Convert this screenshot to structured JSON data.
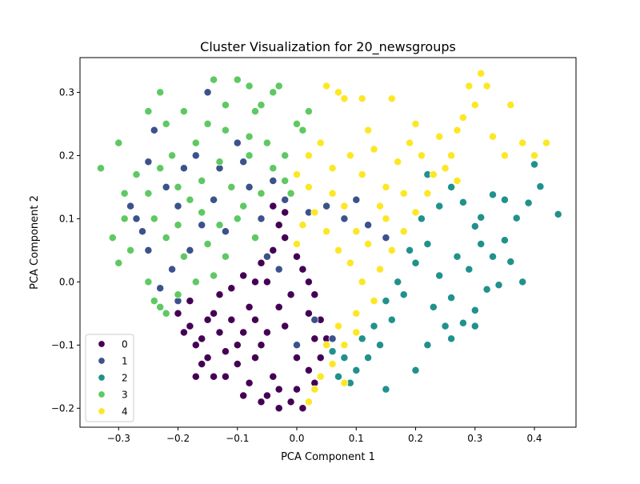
{
  "chart_data": {
    "type": "scatter",
    "title": "Cluster Visualization for 20_newsgroups",
    "xlabel": "PCA Component 1",
    "ylabel": "PCA Component 2",
    "xlim": [
      -0.365,
      0.47
    ],
    "ylim": [
      -0.23,
      0.355
    ],
    "xticks": [
      -0.3,
      -0.2,
      -0.1,
      0.0,
      0.1,
      0.2,
      0.3,
      0.4
    ],
    "yticks": [
      -0.2,
      -0.1,
      0.0,
      0.1,
      0.2,
      0.3
    ],
    "xtick_labels": [
      "−0.3",
      "−0.2",
      "−0.1",
      "0.0",
      "0.1",
      "0.2",
      "0.3",
      "0.4"
    ],
    "ytick_labels": [
      "−0.2",
      "−0.1",
      "0.0",
      "0.1",
      "0.2",
      "0.3"
    ],
    "grid": false,
    "legend_position": "lower-left",
    "marker_edge_color": "#ffffff",
    "series": [
      {
        "name": "0",
        "color": "#440154",
        "points": [
          [
            -0.18,
            -0.07
          ],
          [
            -0.16,
            -0.09
          ],
          [
            -0.14,
            -0.05
          ],
          [
            -0.12,
            -0.11
          ],
          [
            -0.1,
            -0.13
          ],
          [
            -0.08,
            -0.04
          ],
          [
            -0.06,
            -0.1
          ],
          [
            -0.04,
            -0.15
          ],
          [
            -0.02,
            -0.07
          ],
          [
            0.0,
            -0.12
          ],
          [
            0.02,
            -0.05
          ],
          [
            0.03,
            -0.16
          ],
          [
            -0.05,
            -0.18
          ],
          [
            -0.03,
            -0.2
          ],
          [
            -0.01,
            -0.19
          ],
          [
            0.01,
            -0.2
          ],
          [
            -0.08,
            -0.16
          ],
          [
            -0.12,
            -0.15
          ],
          [
            -0.15,
            -0.12
          ],
          [
            -0.17,
            -0.1
          ],
          [
            -0.19,
            -0.08
          ],
          [
            -0.2,
            -0.05
          ],
          [
            -0.18,
            -0.03
          ],
          [
            -0.11,
            -0.01
          ],
          [
            -0.09,
            0.01
          ],
          [
            -0.06,
            0.03
          ],
          [
            -0.04,
            0.05
          ],
          [
            -0.02,
            0.07
          ],
          [
            -0.03,
            0.09
          ],
          [
            -0.02,
            0.11
          ],
          [
            -0.04,
            0.12
          ],
          [
            0.0,
            0.04
          ],
          [
            0.01,
            0.02
          ],
          [
            0.02,
            0.0
          ],
          [
            0.03,
            -0.02
          ],
          [
            0.04,
            -0.06
          ],
          [
            0.05,
            -0.09
          ],
          [
            0.04,
            -0.12
          ],
          [
            0.02,
            -0.14
          ],
          [
            -0.07,
            -0.06
          ],
          [
            -0.09,
            -0.08
          ],
          [
            -0.11,
            -0.06
          ],
          [
            -0.13,
            -0.08
          ],
          [
            -0.15,
            -0.06
          ],
          [
            -0.1,
            -0.1
          ],
          [
            -0.07,
            -0.12
          ],
          [
            -0.05,
            -0.08
          ],
          [
            -0.03,
            -0.04
          ],
          [
            -0.01,
            -0.02
          ],
          [
            -0.05,
            0.0
          ],
          [
            -0.07,
            0.0
          ],
          [
            -0.13,
            -0.02
          ],
          [
            -0.16,
            -0.13
          ],
          [
            -0.14,
            -0.15
          ],
          [
            -0.17,
            -0.15
          ],
          [
            -0.03,
            -0.17
          ],
          [
            0.0,
            -0.17
          ],
          [
            -0.09,
            -0.18
          ],
          [
            -0.06,
            -0.19
          ],
          [
            0.03,
            -0.09
          ]
        ]
      },
      {
        "name": "1",
        "color": "#3b528b",
        "points": [
          [
            -0.24,
            0.24
          ],
          [
            -0.15,
            0.3
          ],
          [
            -0.27,
            0.1
          ],
          [
            -0.26,
            0.08
          ],
          [
            -0.25,
            0.05
          ],
          [
            -0.22,
            0.15
          ],
          [
            -0.2,
            0.12
          ],
          [
            -0.17,
            0.2
          ],
          [
            -0.13,
            0.18
          ],
          [
            -0.1,
            0.22
          ],
          [
            -0.08,
            0.15
          ],
          [
            -0.06,
            0.1
          ],
          [
            -0.05,
            0.04
          ],
          [
            -0.12,
            0.08
          ],
          [
            -0.18,
            0.05
          ],
          [
            -0.21,
            0.02
          ],
          [
            -0.23,
            -0.01
          ],
          [
            -0.2,
            -0.03
          ],
          [
            -0.14,
            0.13
          ],
          [
            -0.09,
            0.19
          ],
          [
            -0.04,
            0.16
          ],
          [
            -0.02,
            0.13
          ],
          [
            0.02,
            0.11
          ],
          [
            0.05,
            0.12
          ],
          [
            0.08,
            0.1
          ],
          [
            0.1,
            0.13
          ],
          [
            0.12,
            0.09
          ],
          [
            0.15,
            0.07
          ],
          [
            -0.16,
            0.09
          ],
          [
            -0.19,
            0.18
          ],
          [
            -0.25,
            0.19
          ],
          [
            -0.28,
            0.12
          ],
          [
            0.03,
            -0.06
          ],
          [
            0.06,
            -0.09
          ],
          [
            0.0,
            -0.1
          ],
          [
            -0.03,
            0.02
          ]
        ]
      },
      {
        "name": "2",
        "color": "#21918c",
        "points": [
          [
            0.44,
            0.107
          ],
          [
            0.4,
            0.186
          ],
          [
            0.41,
            0.151
          ],
          [
            0.39,
            0.125
          ],
          [
            0.37,
            0.101
          ],
          [
            0.33,
            0.138
          ],
          [
            0.35,
            0.13
          ],
          [
            0.31,
            0.102
          ],
          [
            0.28,
            0.126
          ],
          [
            0.3,
            0.088
          ],
          [
            0.35,
            0.066
          ],
          [
            0.36,
            0.032
          ],
          [
            0.34,
            -0.005
          ],
          [
            0.32,
            -0.012
          ],
          [
            0.3,
            -0.045
          ],
          [
            0.28,
            -0.065
          ],
          [
            0.26,
            -0.025
          ],
          [
            0.24,
            0.01
          ],
          [
            0.22,
            0.06
          ],
          [
            0.2,
            0.03
          ],
          [
            0.18,
            -0.02
          ],
          [
            0.16,
            -0.06
          ],
          [
            0.14,
            -0.1
          ],
          [
            0.12,
            -0.12
          ],
          [
            0.1,
            -0.14
          ],
          [
            0.09,
            -0.16
          ],
          [
            0.08,
            -0.12
          ],
          [
            0.07,
            -0.15
          ],
          [
            0.06,
            -0.11
          ],
          [
            0.15,
            -0.17
          ],
          [
            0.2,
            -0.14
          ],
          [
            0.22,
            -0.1
          ],
          [
            0.25,
            -0.07
          ],
          [
            0.27,
            0.04
          ],
          [
            0.29,
            0.02
          ],
          [
            0.31,
            0.06
          ],
          [
            0.33,
            0.04
          ],
          [
            0.26,
            0.15
          ],
          [
            0.24,
            0.12
          ],
          [
            0.22,
            0.17
          ],
          [
            0.21,
            0.1
          ],
          [
            0.19,
            0.05
          ],
          [
            0.17,
            0.0
          ],
          [
            0.15,
            -0.03
          ],
          [
            0.13,
            -0.07
          ],
          [
            0.11,
            -0.09
          ],
          [
            0.23,
            -0.04
          ],
          [
            0.26,
            -0.09
          ],
          [
            0.3,
            -0.07
          ],
          [
            0.38,
            0.0
          ]
        ]
      },
      {
        "name": "3",
        "color": "#5ec962",
        "points": [
          [
            -0.33,
            0.18
          ],
          [
            -0.3,
            0.22
          ],
          [
            -0.29,
            0.14
          ],
          [
            -0.31,
            0.07
          ],
          [
            -0.28,
            0.05
          ],
          [
            -0.3,
            0.03
          ],
          [
            -0.25,
            0.27
          ],
          [
            -0.23,
            0.3
          ],
          [
            -0.22,
            0.25
          ],
          [
            -0.19,
            0.27
          ],
          [
            -0.14,
            0.32
          ],
          [
            -0.1,
            0.32
          ],
          [
            -0.08,
            0.31
          ],
          [
            -0.04,
            0.3
          ],
          [
            -0.03,
            0.31
          ],
          [
            -0.06,
            0.28
          ],
          [
            -0.07,
            0.27
          ],
          [
            -0.17,
            0.22
          ],
          [
            -0.15,
            0.25
          ],
          [
            -0.12,
            0.24
          ],
          [
            -0.08,
            0.23
          ],
          [
            -0.05,
            0.22
          ],
          [
            -0.02,
            0.2
          ],
          [
            0.0,
            0.25
          ],
          [
            0.01,
            0.24
          ],
          [
            0.02,
            0.27
          ],
          [
            -0.21,
            0.2
          ],
          [
            -0.23,
            0.18
          ],
          [
            -0.25,
            0.14
          ],
          [
            -0.24,
            0.1
          ],
          [
            -0.22,
            0.07
          ],
          [
            -0.2,
            0.09
          ],
          [
            -0.18,
            0.13
          ],
          [
            -0.16,
            0.16
          ],
          [
            -0.13,
            0.19
          ],
          [
            -0.11,
            0.15
          ],
          [
            -0.09,
            0.12
          ],
          [
            -0.07,
            0.07
          ],
          [
            -0.12,
            0.04
          ],
          [
            -0.14,
            0.01
          ],
          [
            -0.17,
            0.0
          ],
          [
            -0.2,
            -0.02
          ],
          [
            -0.23,
            -0.04
          ],
          [
            -0.22,
            -0.05
          ],
          [
            -0.25,
            0.0
          ],
          [
            -0.24,
            -0.03
          ],
          [
            -0.19,
            0.04
          ],
          [
            -0.15,
            0.06
          ],
          [
            -0.1,
            0.1
          ],
          [
            -0.06,
            0.14
          ],
          [
            -0.04,
            0.18
          ],
          [
            -0.02,
            0.16
          ],
          [
            -0.01,
            0.14
          ],
          [
            -0.2,
            0.15
          ],
          [
            -0.27,
            0.17
          ],
          [
            -0.29,
            0.1
          ],
          [
            -0.16,
            0.11
          ],
          [
            -0.13,
            0.09
          ],
          [
            -0.08,
            0.2
          ],
          [
            -0.12,
            0.28
          ]
        ]
      },
      {
        "name": "4",
        "color": "#fde725",
        "points": [
          [
            0.05,
            0.31
          ],
          [
            0.07,
            0.3
          ],
          [
            0.08,
            0.29
          ],
          [
            0.11,
            0.29
          ],
          [
            0.12,
            0.24
          ],
          [
            0.16,
            0.29
          ],
          [
            0.27,
            0.24
          ],
          [
            0.29,
            0.31
          ],
          [
            0.31,
            0.33
          ],
          [
            0.32,
            0.31
          ],
          [
            0.3,
            0.28
          ],
          [
            0.28,
            0.26
          ],
          [
            0.33,
            0.23
          ],
          [
            0.36,
            0.28
          ],
          [
            0.38,
            0.22
          ],
          [
            0.4,
            0.2
          ],
          [
            0.42,
            0.22
          ],
          [
            0.35,
            0.2
          ],
          [
            0.04,
            0.22
          ],
          [
            0.06,
            0.18
          ],
          [
            0.09,
            0.2
          ],
          [
            0.11,
            0.17
          ],
          [
            0.13,
            0.21
          ],
          [
            0.15,
            0.15
          ],
          [
            0.17,
            0.19
          ],
          [
            0.19,
            0.22
          ],
          [
            0.21,
            0.2
          ],
          [
            0.23,
            0.17
          ],
          [
            0.25,
            0.18
          ],
          [
            0.27,
            0.16
          ],
          [
            0.0,
            0.17
          ],
          [
            0.02,
            0.15
          ],
          [
            0.03,
            0.11
          ],
          [
            0.05,
            0.08
          ],
          [
            0.07,
            0.05
          ],
          [
            0.09,
            0.03
          ],
          [
            0.11,
            0.0
          ],
          [
            0.13,
            -0.03
          ],
          [
            0.1,
            -0.05
          ],
          [
            0.07,
            -0.07
          ],
          [
            0.05,
            -0.1
          ],
          [
            0.06,
            -0.13
          ],
          [
            0.08,
            -0.1
          ],
          [
            0.04,
            -0.15
          ],
          [
            0.03,
            -0.17
          ],
          [
            0.02,
            -0.19
          ],
          [
            0.08,
            -0.16
          ],
          [
            0.1,
            -0.08
          ],
          [
            0.14,
            0.02
          ],
          [
            0.16,
            0.05
          ],
          [
            0.18,
            0.08
          ],
          [
            0.2,
            0.11
          ],
          [
            0.22,
            0.14
          ],
          [
            0.15,
            0.1
          ],
          [
            0.12,
            0.06
          ],
          [
            0.08,
            0.12
          ],
          [
            0.06,
            0.14
          ],
          [
            0.01,
            0.09
          ],
          [
            0.0,
            0.06
          ],
          [
            0.24,
            0.23
          ],
          [
            0.2,
            0.25
          ],
          [
            0.18,
            0.14
          ],
          [
            0.14,
            0.12
          ],
          [
            0.1,
            0.08
          ],
          [
            0.26,
            0.2
          ],
          [
            0.02,
            0.2
          ]
        ]
      }
    ]
  }
}
